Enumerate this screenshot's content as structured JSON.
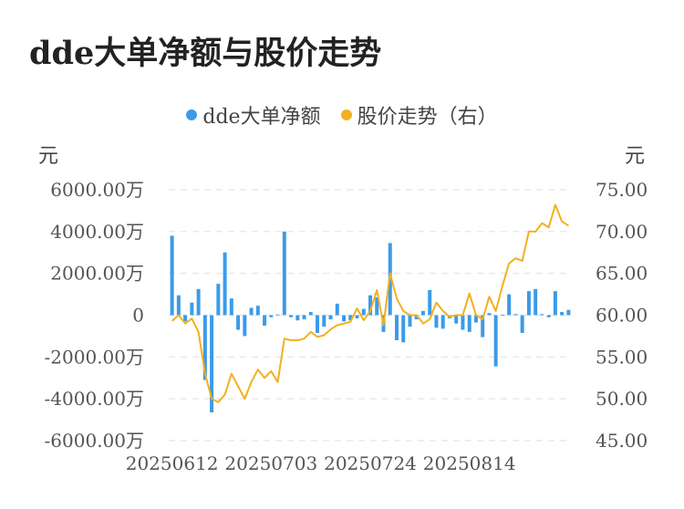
{
  "title": "dde大单净额与股价走势",
  "legend": [
    {
      "label": "dde大单净额",
      "color": "#3b9be8"
    },
    {
      "label": "股价走势（右）",
      "color": "#f2b01e"
    }
  ],
  "chart_data": {
    "type": "bar+line",
    "y_left_unit": "元",
    "y_right_unit": "元",
    "y_left_ticks": [
      "6000.00万",
      "4000.00万",
      "2000.00万",
      "0",
      "-2000.00万",
      "-4000.00万",
      "-6000.00万"
    ],
    "y_right_ticks": [
      "75.00",
      "70.00",
      "65.00",
      "60.00",
      "55.00",
      "50.00",
      "45.00"
    ],
    "y_left_range": [
      -6000,
      6000
    ],
    "y_right_range": [
      45,
      75
    ],
    "x_tick_labels": [
      {
        "label": "20250612",
        "index": 0
      },
      {
        "label": "20250703",
        "index": 15
      },
      {
        "label": "20250724",
        "index": 30
      },
      {
        "label": "20250814",
        "index": 45
      }
    ],
    "series": [
      {
        "name": "dde大单净额",
        "unit": "万",
        "values": [
          3800,
          950,
          -300,
          600,
          1250,
          -3100,
          -4650,
          1500,
          3000,
          800,
          -700,
          -1000,
          350,
          450,
          -500,
          -100,
          30,
          4000,
          -100,
          -250,
          -200,
          150,
          -850,
          -550,
          -200,
          550,
          -300,
          -250,
          -150,
          300,
          950,
          850,
          -800,
          3450,
          -1200,
          -1300,
          -550,
          -200,
          200,
          1200,
          -600,
          -650,
          -150,
          -400,
          -700,
          -800,
          -350,
          -1050,
          100,
          -2450,
          20,
          1000,
          50,
          -850,
          1150,
          1250,
          50,
          -100,
          1150,
          150,
          250
        ]
      },
      {
        "name": "股价走势（右）",
        "values": [
          59.3,
          60.0,
          59.0,
          59.6,
          58.0,
          53.0,
          50.0,
          49.6,
          50.5,
          53.0,
          51.5,
          50.0,
          52.0,
          53.5,
          52.5,
          53.3,
          52.0,
          57.2,
          57.0,
          57.0,
          57.2,
          58.0,
          57.4,
          57.6,
          58.3,
          58.8,
          59.0,
          59.2,
          60.8,
          59.4,
          60.5,
          63.0,
          58.8,
          65.0,
          62.0,
          60.5,
          60.0,
          60.0,
          59.0,
          59.5,
          61.5,
          60.5,
          59.8,
          60.0,
          60.0,
          62.6,
          60.0,
          59.5,
          62.2,
          60.5,
          63.5,
          66.2,
          66.8,
          66.5,
          70.0,
          70.0,
          71.0,
          70.5,
          73.2,
          71.2,
          70.7
        ]
      }
    ],
    "grid": "horizontal-dashed"
  }
}
